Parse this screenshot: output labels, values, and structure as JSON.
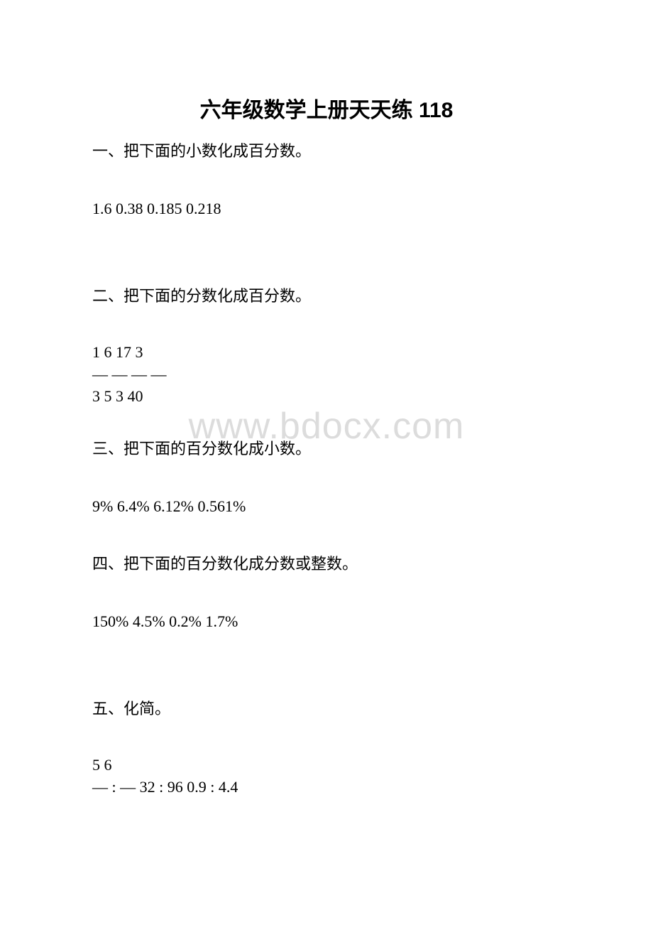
{
  "title": "六年级数学上册天天练 118",
  "watermark": "www.bdocx.com",
  "sections": {
    "one": {
      "heading": "一、把下面的小数化成百分数。",
      "content": "1.6  0.38  0.185  0.218"
    },
    "two": {
      "heading": "二、把下面的分数化成百分数。",
      "fraction_top": "1  6  17  3",
      "fraction_mid": "—  —  —  —",
      "fraction_bottom": "3  5  3  40"
    },
    "three": {
      "heading": "三、把下面的百分数化成小数。",
      "content": "9%  6.4%  6.12%  0.561%"
    },
    "four": {
      "heading": "四、把下面的百分数化成分数或整数。",
      "content": "150%  4.5%  0.2%  1.7%"
    },
    "five": {
      "heading": "五、化简。",
      "fraction_top": "5  6",
      "fraction_bottom": "— : —  32 : 96  0.9 : 4.4"
    }
  }
}
